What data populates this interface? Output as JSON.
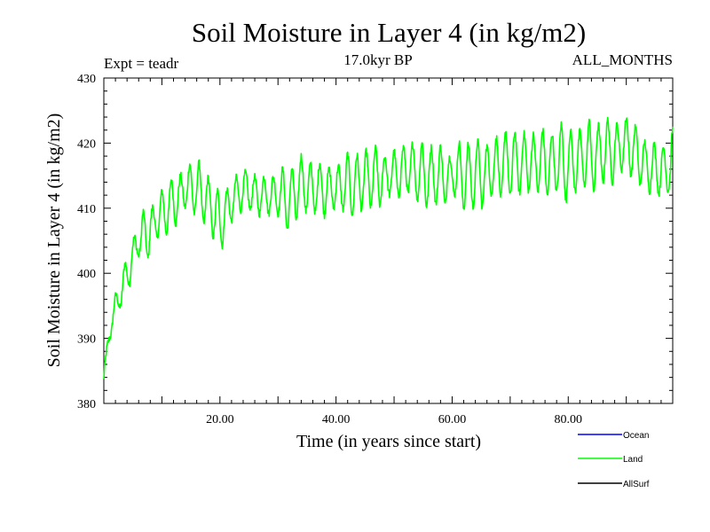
{
  "chart_data": {
    "type": "line",
    "title": "Soil Moisture in Layer 4 (in kg/m2)",
    "subtitle_left": "Expt = teadr",
    "subtitle_center": "17.0kyr BP",
    "subtitle_right": "ALL_MONTHS",
    "xlabel": "Time (in years since start)",
    "ylabel": "Soil Moisture in Layer 4 (in kg/m2)",
    "xlim": [
      0,
      98
    ],
    "ylim": [
      380,
      430
    ],
    "x_ticks": [
      20,
      40,
      60,
      80
    ],
    "x_tick_labels": [
      "20.00",
      "40.00",
      "60.00",
      "80.00"
    ],
    "y_ticks": [
      380,
      390,
      400,
      410,
      420,
      430
    ],
    "y_tick_labels": [
      "380",
      "390",
      "400",
      "410",
      "420",
      "430"
    ],
    "series": [
      {
        "name": "Land",
        "color": "#00ff00",
        "anchor_years": [
          0,
          1,
          2,
          3,
          4,
          5,
          6,
          7,
          8,
          10,
          12,
          14,
          16,
          18,
          19,
          20,
          22,
          24,
          26,
          28,
          30,
          32,
          34,
          36,
          40,
          44,
          48,
          50,
          52,
          56,
          60,
          64,
          70,
          72,
          76,
          80,
          84,
          88,
          90,
          92,
          94,
          96,
          98
        ],
        "anchor_values": [
          384,
          391,
          395,
          397,
          400,
          403,
          405,
          405.5,
          407,
          409,
          411,
          413,
          413,
          411,
          409,
          408,
          411,
          413,
          412,
          412,
          412,
          411,
          414,
          413,
          413,
          414,
          415,
          415,
          416,
          415,
          415,
          415,
          417,
          417,
          417,
          417,
          418,
          419,
          420,
          418,
          416,
          416,
          416
        ],
        "amplitude_start": 2.5,
        "amplitude_end": 4.5,
        "period_years": 1.6
      },
      {
        "name": "Ocean",
        "color": "#0000ff"
      },
      {
        "name": "AllSurf",
        "color": "#000000"
      }
    ],
    "legend": {
      "placement": "bottom-right",
      "entries": [
        {
          "label": "Ocean",
          "color": "#0000ff"
        },
        {
          "label": "Land",
          "color": "#00ff00"
        },
        {
          "label": "AllSurf",
          "color": "#000000"
        }
      ]
    }
  }
}
